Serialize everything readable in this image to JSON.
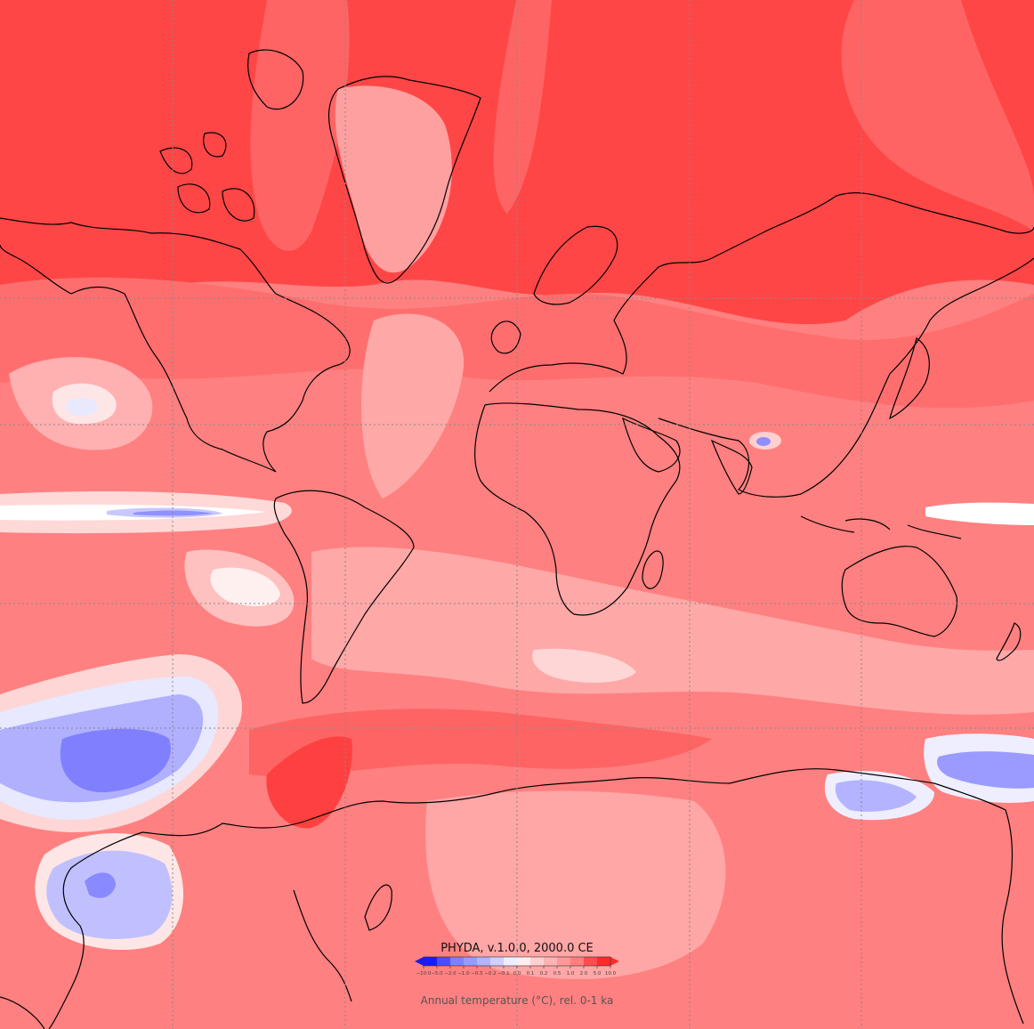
{
  "map": {
    "title": "PHYDA, v.1.0.0, 2000.0 CE",
    "colorbar_label": "Annual temperature (°C), rel. 0-1 ka",
    "colorbar_ticks": [
      "−10.0",
      "−5.0",
      "−2.0",
      "−1.0",
      "−0.5",
      "−0.2",
      "−0.1",
      "0.0",
      "0.1",
      "0.2",
      "0.5",
      "1.0",
      "2.0",
      "5.0",
      "10.0"
    ],
    "colorbar_colors": [
      "#1a1aff",
      "#4d4dff",
      "#7f7fff",
      "#9999ff",
      "#b3b3ff",
      "#d0d0ff",
      "#eeeeff",
      "#ffeeee",
      "#ffd0d0",
      "#ffb3b3",
      "#ff9999",
      "#ff7f7f",
      "#ff4d4d",
      "#ff2a2a"
    ],
    "projection": "Mercator",
    "gridlines": true
  }
}
